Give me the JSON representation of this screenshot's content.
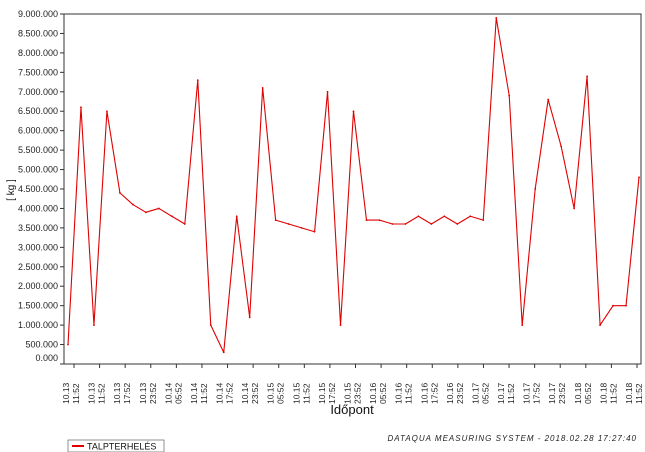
{
  "chart_data": {
    "type": "line",
    "title": "",
    "xlabel": "Időpont",
    "ylabel": "[ kg ]",
    "ylim": [
      0,
      9000000
    ],
    "grid": false,
    "legend_placement": "bottom-left",
    "series_color": "#e00000",
    "yticks": [
      0,
      500000,
      1000000,
      1500000,
      2000000,
      2500000,
      3000000,
      3500000,
      4000000,
      4500000,
      5000000,
      5500000,
      6000000,
      6500000,
      7000000,
      7500000,
      8000000,
      8500000,
      9000000
    ],
    "ytick_labels": [
      "0.000",
      "500.000",
      "1.000.000",
      "1.500.000",
      "2.000.000",
      "2.500.000",
      "3.000.000",
      "3.500.000",
      "4.000.000",
      "4.500.000",
      "5.000.000",
      "5.500.000",
      "6.000.000",
      "6.500.000",
      "7.000.000",
      "7.500.000",
      "8.000.000",
      "8.500.000",
      "9.000.000"
    ],
    "xtick_labels": [
      [
        "10.13",
        "11:52"
      ],
      [
        "10.13",
        "11:52"
      ],
      [
        "10.13",
        "17:52"
      ],
      [
        "10.13",
        "23:52"
      ],
      [
        "10.14",
        "05:52"
      ],
      [
        "10.14",
        "11:52"
      ],
      [
        "10.14",
        "17:52"
      ],
      [
        "10.14",
        "23:52"
      ],
      [
        "10.15",
        "05:52"
      ],
      [
        "10.15",
        "11:52"
      ],
      [
        "10.15",
        "17:52"
      ],
      [
        "10.15",
        "23:52"
      ],
      [
        "10.16",
        "05:52"
      ],
      [
        "10.16",
        "11:52"
      ],
      [
        "10.16",
        "17:52"
      ],
      [
        "10.16",
        "23:52"
      ],
      [
        "10.17",
        "05:52"
      ],
      [
        "10.17",
        "11:52"
      ],
      [
        "10.17",
        "17:52"
      ],
      [
        "10.17",
        "23:52"
      ],
      [
        "10.18",
        "05:52"
      ],
      [
        "10.18",
        "11:52"
      ],
      [
        "10.18",
        "11:52"
      ]
    ],
    "series": [
      {
        "name": "TALPTERHELÉS",
        "x": [
          0,
          0.5,
          1,
          1.5,
          2,
          2.5,
          3,
          3.5,
          4,
          4.5,
          5,
          5.5,
          6,
          6.5,
          7,
          7.5,
          8,
          8.5,
          9,
          9.5,
          10,
          10.5,
          11,
          11.5,
          12,
          12.5,
          13,
          13.5,
          14,
          14.5,
          15,
          15.5,
          16,
          16.5,
          17,
          17.5,
          18,
          18.5,
          19,
          19.5,
          20,
          20.5,
          21,
          21.5,
          22
        ],
        "values": [
          500000,
          6600000,
          1000000,
          6500000,
          4400000,
          4100000,
          3900000,
          4000000,
          3800000,
          3600000,
          7300000,
          1000000,
          300000,
          3800000,
          1200000,
          7100000,
          3700000,
          3600000,
          3500000,
          3400000,
          7000000,
          1000000,
          6500000,
          3700000,
          3700000,
          3600000,
          3600000,
          3800000,
          3600000,
          3800000,
          3600000,
          3800000,
          3700000,
          8900000,
          6900000,
          1000000,
          4500000,
          6800000,
          5600000,
          4000000,
          7400000,
          1000000,
          1500000,
          1500000,
          4800000
        ]
      }
    ],
    "footer": "DATAQUA MEASURING SYSTEM - 2018.02.28 17:27:40"
  }
}
